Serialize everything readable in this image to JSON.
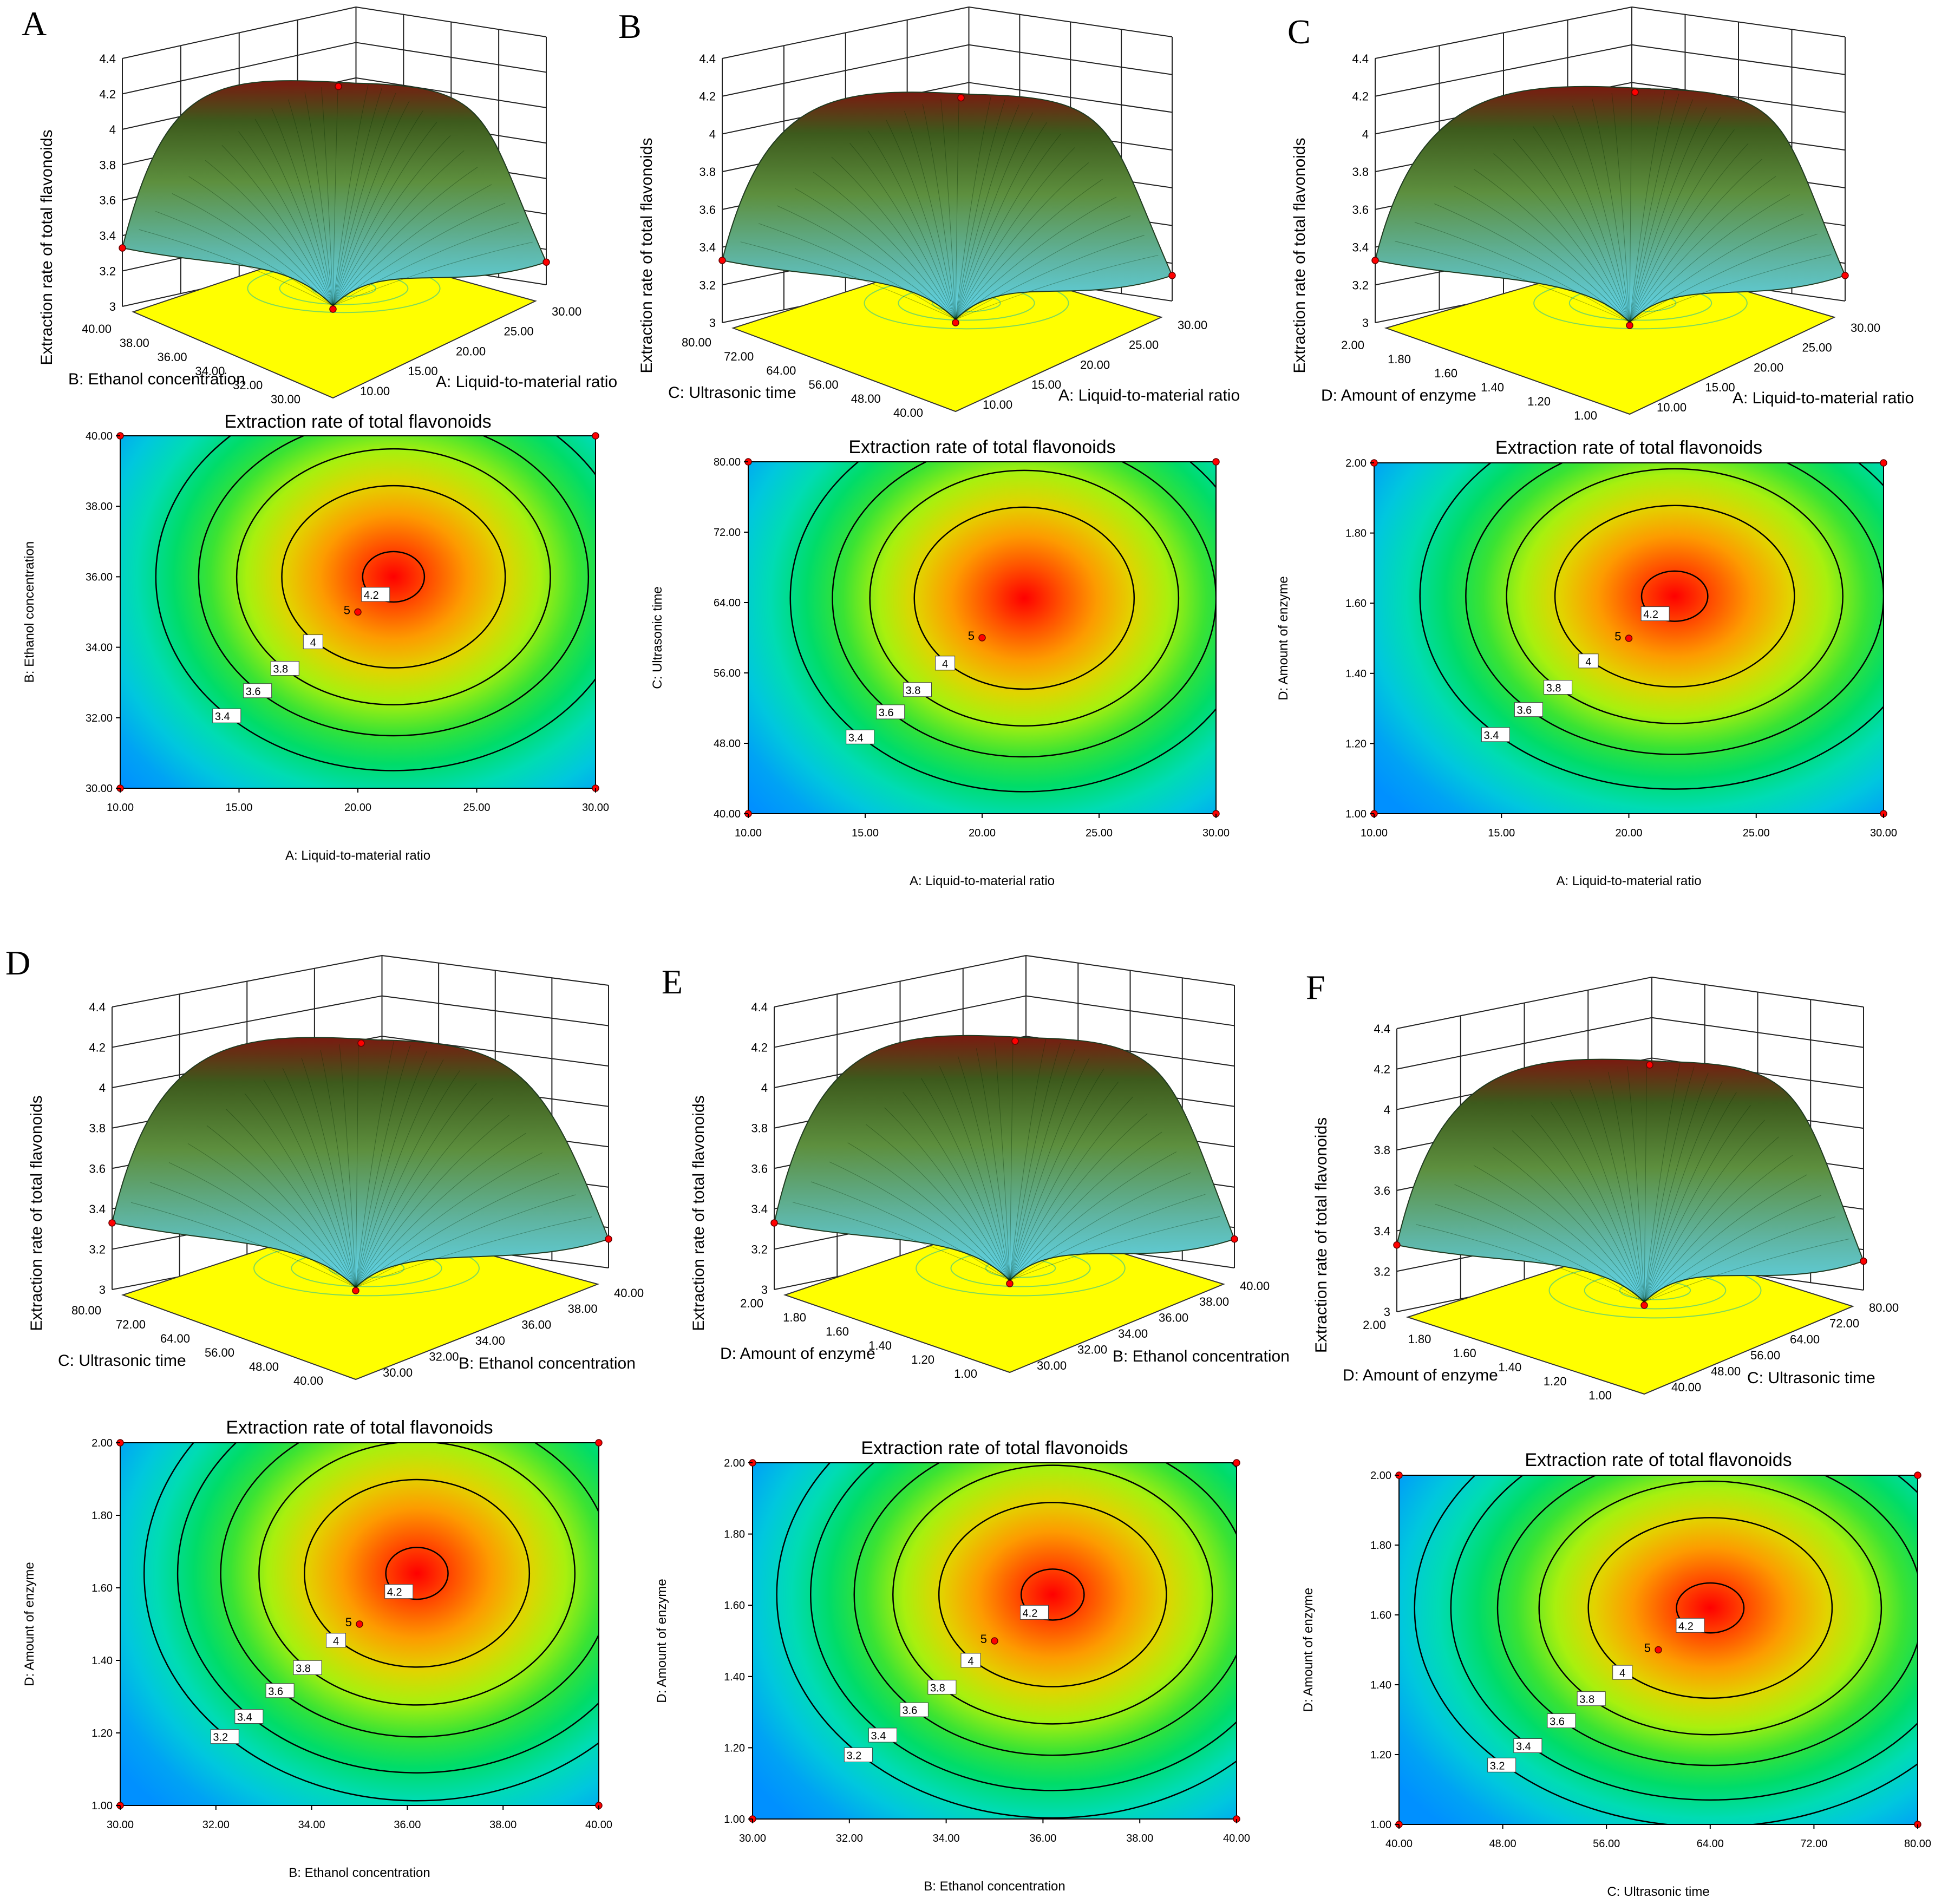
{
  "figure": {
    "panel_letters": [
      "A",
      "B",
      "C",
      "D",
      "E",
      "F"
    ]
  },
  "colors": {
    "floor": "#ffff00",
    "peak": "#ff0000",
    "low": "#0090ff",
    "design_point": "#ff0000",
    "contour_line": "#000000"
  },
  "chart_data": [
    {
      "type": "surface",
      "panel": "A",
      "title": "Extraction rate of total flavonoids",
      "zlabel": "Extraction rate of total flavonoids",
      "zticks": [
        "3",
        "3.2",
        "3.4",
        "3.6",
        "3.8",
        "4",
        "4.2",
        "4.4"
      ],
      "x": {
        "label": "A: Liquid-to-material ratio",
        "ticks": [
          "10.00",
          "15.00",
          "20.00",
          "25.00",
          "30.00"
        ],
        "range": [
          10,
          30
        ],
        "optimum": 21.5
      },
      "y": {
        "label": "B: Ethanol concentration",
        "ticks": [
          "30.00",
          "32.00",
          "34.00",
          "36.00",
          "38.00",
          "40.00"
        ],
        "range": [
          30,
          40
        ],
        "optimum": 36.0
      },
      "contour_levels": [
        "3.4",
        "3.6",
        "3.8",
        "4",
        "4.2"
      ],
      "center_label": "5",
      "center": [
        20,
        35
      ],
      "zrange": [
        3.0,
        4.4
      ],
      "peak": 4.23
    },
    {
      "type": "surface",
      "panel": "B",
      "title": "Extraction rate of total flavonoids",
      "zlabel": "Extraction rate of total flavonoids",
      "zticks": [
        "3",
        "3.2",
        "3.4",
        "3.6",
        "3.8",
        "4",
        "4.2",
        "4.4"
      ],
      "x": {
        "label": "A: Liquid-to-material ratio",
        "ticks": [
          "10.00",
          "15.00",
          "20.00",
          "25.00",
          "30.00"
        ],
        "range": [
          10,
          30
        ],
        "optimum": 21.8
      },
      "y": {
        "label": "C: Ultrasonic time",
        "ticks": [
          "40.00",
          "48.00",
          "56.00",
          "64.00",
          "72.00",
          "80.00"
        ],
        "range": [
          40,
          80
        ],
        "optimum": 64.5
      },
      "contour_levels": [
        "3.4",
        "3.6",
        "3.8",
        "4"
      ],
      "center_label": "5",
      "center": [
        20,
        60
      ],
      "zrange": [
        3.0,
        4.4
      ],
      "peak": 4.18
    },
    {
      "type": "surface",
      "panel": "C",
      "title": "Extraction rate of total flavonoids",
      "zlabel": "Extraction rate of total flavonoids",
      "zticks": [
        "3",
        "3.2",
        "3.4",
        "3.6",
        "3.8",
        "4",
        "4.2",
        "4.4"
      ],
      "x": {
        "label": "A: Liquid-to-material ratio",
        "ticks": [
          "10.00",
          "15.00",
          "20.00",
          "25.00",
          "30.00"
        ],
        "range": [
          10,
          30
        ],
        "optimum": 21.8
      },
      "y": {
        "label": "D: Amount of enzyme",
        "ticks": [
          "1.00",
          "1.20",
          "1.40",
          "1.60",
          "1.80",
          "2.00"
        ],
        "range": [
          1,
          2
        ],
        "optimum": 1.62
      },
      "contour_levels": [
        "3.4",
        "3.6",
        "3.8",
        "4",
        "4.2"
      ],
      "center_label": "5",
      "center": [
        20,
        1.5
      ],
      "zrange": [
        3.0,
        4.4
      ],
      "peak": 4.21
    },
    {
      "type": "surface",
      "panel": "D",
      "title": "Extraction rate of total flavonoids",
      "zlabel": "Extraction rate of total flavonoids",
      "zticks": [
        "3",
        "3.2",
        "3.4",
        "3.6",
        "3.8",
        "4",
        "4.2",
        "4.4"
      ],
      "x": {
        "label": "B: Ethanol concentration",
        "ticks": [
          "30.00",
          "32.00",
          "34.00",
          "36.00",
          "38.00",
          "40.00"
        ],
        "range": [
          30,
          40
        ],
        "optimum": 36.2
      },
      "y": {
        "label": "C: Ultrasonic time",
        "ticks": [
          "40.00",
          "48.00",
          "56.00",
          "64.00",
          "72.00",
          "80.00"
        ],
        "range": [
          40,
          80
        ],
        "optimum": 64.0
      },
      "y2": {
        "label": "D: Amount of enzyme",
        "ticks": [
          "1.00",
          "1.20",
          "1.40",
          "1.60",
          "1.80",
          "2.00"
        ],
        "range": [
          1,
          2
        ],
        "optimum": 1.64
      },
      "contour_levels": [
        "3.2",
        "3.4",
        "3.6",
        "3.8",
        "4",
        "4.2"
      ],
      "center_label": "5",
      "center": [
        35,
        1.5
      ],
      "zrange": [
        3.0,
        4.4
      ],
      "peak": 4.21
    },
    {
      "type": "surface",
      "panel": "E",
      "title": "Extraction rate of total flavonoids",
      "zlabel": "Extraction rate of total flavonoids",
      "zticks": [
        "3",
        "3.2",
        "3.4",
        "3.6",
        "3.8",
        "4",
        "4.2",
        "4.4"
      ],
      "x": {
        "label": "B: Ethanol concentration",
        "ticks": [
          "30.00",
          "32.00",
          "34.00",
          "36.00",
          "38.00",
          "40.00"
        ],
        "range": [
          30,
          40
        ],
        "optimum": 36.2
      },
      "y": {
        "label": "D: Amount of enzyme",
        "ticks": [
          "1.00",
          "1.20",
          "1.40",
          "1.60",
          "1.80",
          "2.00"
        ],
        "range": [
          1,
          2
        ],
        "optimum": 1.63
      },
      "contour_levels": [
        "3.2",
        "3.4",
        "3.6",
        "3.8",
        "4",
        "4.2"
      ],
      "center_label": "5",
      "center": [
        35,
        1.5
      ],
      "zrange": [
        3.0,
        4.4
      ],
      "peak": 4.22
    },
    {
      "type": "surface",
      "panel": "F",
      "title": "Extraction rate of total flavonoids",
      "zlabel": "Extraction rate of total flavonoids",
      "zticks": [
        "3",
        "3.2",
        "3.4",
        "3.6",
        "3.8",
        "4",
        "4.2",
        "4.4"
      ],
      "x": {
        "label": "C: Ultrasonic time",
        "ticks": [
          "40.00",
          "48.00",
          "56.00",
          "64.00",
          "72.00",
          "80.00"
        ],
        "range": [
          40,
          80
        ],
        "optimum": 64.0
      },
      "y": {
        "label": "D: Amount of enzyme",
        "ticks": [
          "1.00",
          "1.20",
          "1.40",
          "1.60",
          "1.80",
          "2.00"
        ],
        "range": [
          1,
          2
        ],
        "optimum": 1.62
      },
      "contour_levels": [
        "3.2",
        "3.4",
        "3.6",
        "3.8",
        "4",
        "4.2"
      ],
      "center_label": "5",
      "center": [
        60,
        1.5
      ],
      "zrange": [
        3.0,
        4.4
      ],
      "peak": 4.21
    }
  ]
}
